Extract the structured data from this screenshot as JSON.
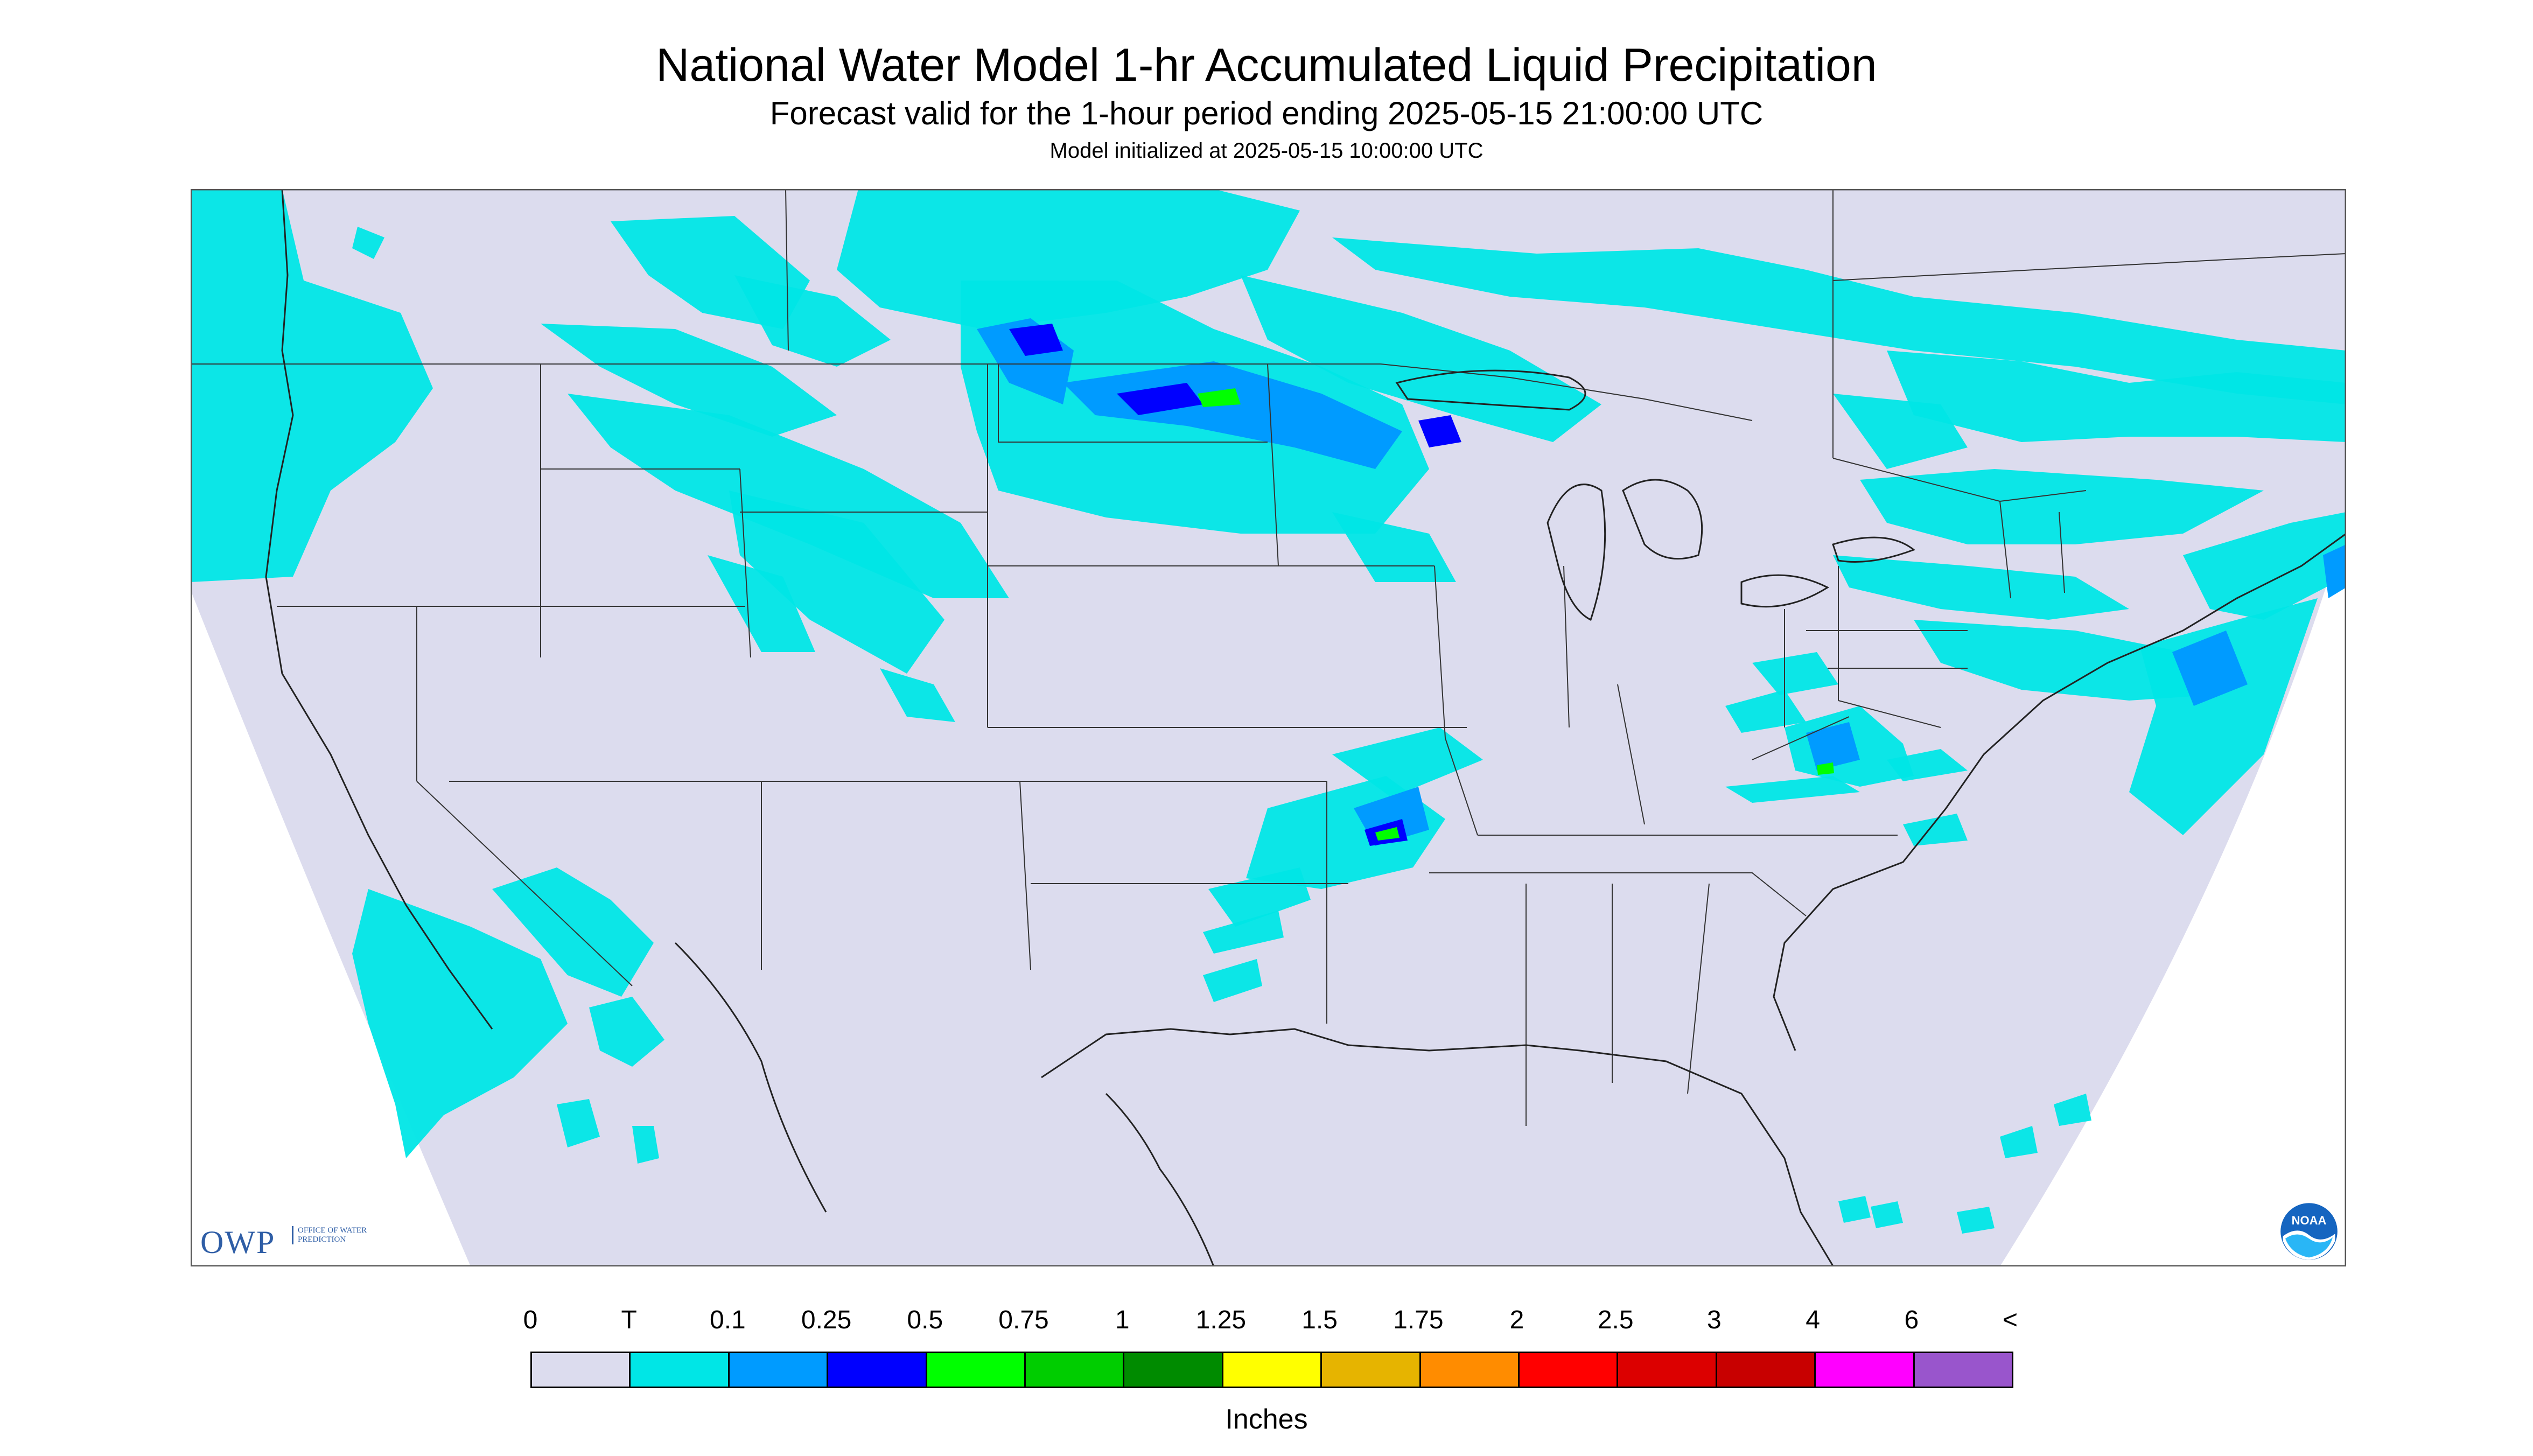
{
  "header": {
    "title": "National Water Model 1-hr Accumulated Liquid Precipitation",
    "subtitle": "Forecast valid for the 1-hour period ending 2025-05-15 21:00:00 UTC",
    "init_line": "Model initialized at 2025-05-15 10:00:00 UTC"
  },
  "colors": {
    "background_domain": "#dcdcee",
    "outside_domain": "#ffffff",
    "trace": "#00e6e6",
    "boundary_lines": "#333333"
  },
  "legend": {
    "labels": [
      "0",
      "T",
      "0.1",
      "0.25",
      "0.5",
      "0.75",
      "1",
      "1.25",
      "1.5",
      "1.75",
      "2",
      "2.5",
      "3",
      "4",
      "6",
      "<"
    ],
    "colors": [
      "#dcdcee",
      "#00e6e6",
      "#009bff",
      "#0000ff",
      "#00ff00",
      "#00cd00",
      "#008b00",
      "#ffff00",
      "#e6b400",
      "#ff8c00",
      "#ff0000",
      "#dc0000",
      "#c80000",
      "#ff00ff",
      "#9955cc"
    ],
    "units": "Inches"
  },
  "logos": {
    "owp_main": "OWP",
    "owp_sub": "OFFICE OF WATER PREDICTION",
    "noaa": "NOAA"
  }
}
